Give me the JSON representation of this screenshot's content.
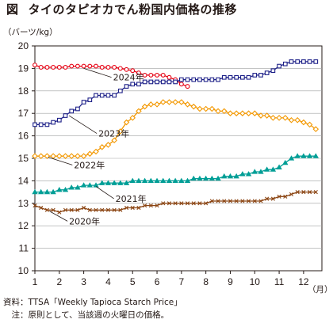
{
  "header": {
    "figure_label": "図",
    "title": "タイのタピオカでん粉国内価格の推移"
  },
  "footer": {
    "source": "資料：TTSA「Weekly Tapioca Starch Price」",
    "note": "　注：原則として、当該週の火曜日の価格。"
  },
  "chart_data": {
    "type": "line",
    "title": "タイのタピオカでん粉国内価格の推移",
    "ylabel": "（バーツ/kg）",
    "xlabel": "（月）",
    "ylim": [
      10,
      20
    ],
    "y_ticks": [
      10,
      11,
      12,
      13,
      14,
      15,
      16,
      17,
      18,
      19,
      20
    ],
    "x_ticks": [
      "1",
      "2",
      "3",
      "4",
      "5",
      "6",
      "7",
      "8",
      "9",
      "10",
      "11",
      "12"
    ],
    "xlim": [
      1,
      12.75
    ],
    "grid": true,
    "series": [
      {
        "name": "2024年",
        "color": "#e60012",
        "marker": "circle",
        "points": [
          [
            1.0,
            19.15
          ],
          [
            1.25,
            19.05
          ],
          [
            1.5,
            19.05
          ],
          [
            1.75,
            19.05
          ],
          [
            2.0,
            19.05
          ],
          [
            2.25,
            19.05
          ],
          [
            2.5,
            19.1
          ],
          [
            2.75,
            19.1
          ],
          [
            3.0,
            19.1
          ],
          [
            3.25,
            19.1
          ],
          [
            3.5,
            19.1
          ],
          [
            3.75,
            19.05
          ],
          [
            4.0,
            19.05
          ],
          [
            4.25,
            19.05
          ],
          [
            4.5,
            19.0
          ],
          [
            4.75,
            18.95
          ],
          [
            5.0,
            18.9
          ],
          [
            5.25,
            18.8
          ],
          [
            5.5,
            18.7
          ],
          [
            5.75,
            18.7
          ],
          [
            6.0,
            18.7
          ],
          [
            6.25,
            18.7
          ],
          [
            6.5,
            18.6
          ],
          [
            6.75,
            18.5
          ],
          [
            7.0,
            18.3
          ],
          [
            7.25,
            18.2
          ]
        ]
      },
      {
        "name": "2023年",
        "color": "#1d2088",
        "marker": "square",
        "points": [
          [
            1.0,
            16.5
          ],
          [
            1.25,
            16.5
          ],
          [
            1.5,
            16.5
          ],
          [
            1.75,
            16.6
          ],
          [
            2.0,
            16.7
          ],
          [
            2.25,
            16.9
          ],
          [
            2.5,
            17.1
          ],
          [
            2.75,
            17.2
          ],
          [
            3.0,
            17.5
          ],
          [
            3.25,
            17.6
          ],
          [
            3.5,
            17.8
          ],
          [
            3.75,
            17.8
          ],
          [
            4.0,
            17.8
          ],
          [
            4.25,
            17.8
          ],
          [
            4.5,
            18.0
          ],
          [
            4.75,
            18.2
          ],
          [
            5.0,
            18.3
          ],
          [
            5.25,
            18.3
          ],
          [
            5.5,
            18.4
          ],
          [
            5.75,
            18.4
          ],
          [
            6.0,
            18.4
          ],
          [
            6.25,
            18.4
          ],
          [
            6.5,
            18.4
          ],
          [
            6.75,
            18.4
          ],
          [
            7.0,
            18.5
          ],
          [
            7.25,
            18.5
          ],
          [
            7.5,
            18.5
          ],
          [
            7.75,
            18.5
          ],
          [
            8.0,
            18.5
          ],
          [
            8.25,
            18.5
          ],
          [
            8.5,
            18.5
          ],
          [
            8.75,
            18.6
          ],
          [
            9.0,
            18.6
          ],
          [
            9.25,
            18.6
          ],
          [
            9.5,
            18.6
          ],
          [
            9.75,
            18.6
          ],
          [
            10.0,
            18.7
          ],
          [
            10.25,
            18.7
          ],
          [
            10.5,
            18.8
          ],
          [
            10.75,
            18.9
          ],
          [
            11.0,
            19.1
          ],
          [
            11.25,
            19.2
          ],
          [
            11.5,
            19.3
          ],
          [
            11.75,
            19.3
          ],
          [
            12.0,
            19.3
          ],
          [
            12.25,
            19.3
          ],
          [
            12.5,
            19.3
          ]
        ]
      },
      {
        "name": "2022年",
        "color": "#f39800",
        "marker": "diamond",
        "points": [
          [
            1.0,
            15.1
          ],
          [
            1.25,
            15.1
          ],
          [
            1.5,
            15.1
          ],
          [
            1.75,
            15.1
          ],
          [
            2.0,
            15.1
          ],
          [
            2.25,
            15.1
          ],
          [
            2.5,
            15.1
          ],
          [
            2.75,
            15.1
          ],
          [
            3.0,
            15.1
          ],
          [
            3.25,
            15.2
          ],
          [
            3.5,
            15.3
          ],
          [
            3.75,
            15.5
          ],
          [
            4.0,
            15.6
          ],
          [
            4.25,
            15.8
          ],
          [
            4.5,
            16.2
          ],
          [
            4.75,
            16.6
          ],
          [
            5.0,
            16.8
          ],
          [
            5.25,
            17.1
          ],
          [
            5.5,
            17.3
          ],
          [
            5.75,
            17.4
          ],
          [
            6.0,
            17.4
          ],
          [
            6.25,
            17.5
          ],
          [
            6.5,
            17.5
          ],
          [
            6.75,
            17.5
          ],
          [
            7.0,
            17.5
          ],
          [
            7.25,
            17.4
          ],
          [
            7.5,
            17.3
          ],
          [
            7.75,
            17.2
          ],
          [
            8.0,
            17.2
          ],
          [
            8.25,
            17.2
          ],
          [
            8.5,
            17.1
          ],
          [
            8.75,
            17.1
          ],
          [
            9.0,
            17.0
          ],
          [
            9.25,
            17.0
          ],
          [
            9.5,
            17.0
          ],
          [
            9.75,
            17.0
          ],
          [
            10.0,
            17.0
          ],
          [
            10.25,
            16.9
          ],
          [
            10.5,
            16.9
          ],
          [
            10.75,
            16.8
          ],
          [
            11.0,
            16.8
          ],
          [
            11.25,
            16.8
          ],
          [
            11.5,
            16.7
          ],
          [
            11.75,
            16.7
          ],
          [
            12.0,
            16.6
          ],
          [
            12.25,
            16.5
          ],
          [
            12.5,
            16.3
          ]
        ]
      },
      {
        "name": "2021年",
        "color": "#009e96",
        "marker": "triangle",
        "points": [
          [
            1.0,
            13.5
          ],
          [
            1.25,
            13.5
          ],
          [
            1.5,
            13.5
          ],
          [
            1.75,
            13.5
          ],
          [
            2.0,
            13.6
          ],
          [
            2.25,
            13.6
          ],
          [
            2.5,
            13.7
          ],
          [
            2.75,
            13.7
          ],
          [
            3.0,
            13.8
          ],
          [
            3.25,
            13.8
          ],
          [
            3.5,
            13.8
          ],
          [
            3.75,
            13.9
          ],
          [
            4.0,
            13.9
          ],
          [
            4.25,
            13.9
          ],
          [
            4.5,
            13.9
          ],
          [
            4.75,
            13.9
          ],
          [
            5.0,
            14.0
          ],
          [
            5.25,
            14.0
          ],
          [
            5.5,
            14.0
          ],
          [
            5.75,
            14.0
          ],
          [
            6.0,
            14.0
          ],
          [
            6.25,
            14.0
          ],
          [
            6.5,
            14.0
          ],
          [
            6.75,
            14.0
          ],
          [
            7.0,
            14.0
          ],
          [
            7.25,
            14.0
          ],
          [
            7.5,
            14.1
          ],
          [
            7.75,
            14.1
          ],
          [
            8.0,
            14.1
          ],
          [
            8.25,
            14.1
          ],
          [
            8.5,
            14.1
          ],
          [
            8.75,
            14.2
          ],
          [
            9.0,
            14.2
          ],
          [
            9.25,
            14.2
          ],
          [
            9.5,
            14.3
          ],
          [
            9.75,
            14.3
          ],
          [
            10.0,
            14.4
          ],
          [
            10.25,
            14.4
          ],
          [
            10.5,
            14.5
          ],
          [
            10.75,
            14.5
          ],
          [
            11.0,
            14.6
          ],
          [
            11.25,
            14.8
          ],
          [
            11.5,
            15.0
          ],
          [
            11.75,
            15.1
          ],
          [
            12.0,
            15.1
          ],
          [
            12.25,
            15.1
          ],
          [
            12.5,
            15.1
          ]
        ]
      },
      {
        "name": "2020年",
        "color": "#8b4513",
        "marker": "cross",
        "points": [
          [
            1.0,
            12.9
          ],
          [
            1.25,
            12.8
          ],
          [
            1.5,
            12.7
          ],
          [
            1.75,
            12.7
          ],
          [
            2.0,
            12.6
          ],
          [
            2.25,
            12.7
          ],
          [
            2.5,
            12.7
          ],
          [
            2.75,
            12.7
          ],
          [
            3.0,
            12.8
          ],
          [
            3.25,
            12.7
          ],
          [
            3.5,
            12.7
          ],
          [
            3.75,
            12.7
          ],
          [
            4.0,
            12.7
          ],
          [
            4.25,
            12.7
          ],
          [
            4.5,
            12.7
          ],
          [
            4.75,
            12.8
          ],
          [
            5.0,
            12.8
          ],
          [
            5.25,
            12.8
          ],
          [
            5.5,
            12.9
          ],
          [
            5.75,
            12.9
          ],
          [
            6.0,
            12.9
          ],
          [
            6.25,
            13.0
          ],
          [
            6.5,
            13.0
          ],
          [
            6.75,
            13.0
          ],
          [
            7.0,
            13.0
          ],
          [
            7.25,
            13.0
          ],
          [
            7.5,
            13.0
          ],
          [
            7.75,
            13.0
          ],
          [
            8.0,
            13.0
          ],
          [
            8.25,
            13.1
          ],
          [
            8.5,
            13.1
          ],
          [
            8.75,
            13.1
          ],
          [
            9.0,
            13.1
          ],
          [
            9.25,
            13.1
          ],
          [
            9.5,
            13.1
          ],
          [
            9.75,
            13.1
          ],
          [
            10.0,
            13.1
          ],
          [
            10.25,
            13.1
          ],
          [
            10.5,
            13.2
          ],
          [
            10.75,
            13.2
          ],
          [
            11.0,
            13.3
          ],
          [
            11.25,
            13.3
          ],
          [
            11.5,
            13.4
          ],
          [
            11.75,
            13.5
          ],
          [
            12.0,
            13.5
          ],
          [
            12.25,
            13.5
          ],
          [
            12.5,
            13.5
          ]
        ]
      }
    ],
    "annotations": [
      {
        "text": "2024年",
        "series": "2024年",
        "at": [
          4.2,
          18.5
        ],
        "from": [
          3.0,
          19.0
        ]
      },
      {
        "text": "2023年",
        "series": "2023年",
        "at": [
          3.6,
          16.0
        ],
        "from": [
          2.4,
          16.9
        ]
      },
      {
        "text": "2022年",
        "series": "2022年",
        "at": [
          2.6,
          14.6
        ],
        "from": [
          1.55,
          15.05
        ]
      },
      {
        "text": "2021年",
        "series": "2021年",
        "at": [
          4.3,
          13.1
        ],
        "from": [
          3.5,
          13.75
        ]
      },
      {
        "text": "2020年",
        "series": "2020年",
        "at": [
          2.4,
          12.1
        ],
        "from": [
          1.6,
          12.65
        ]
      }
    ]
  }
}
